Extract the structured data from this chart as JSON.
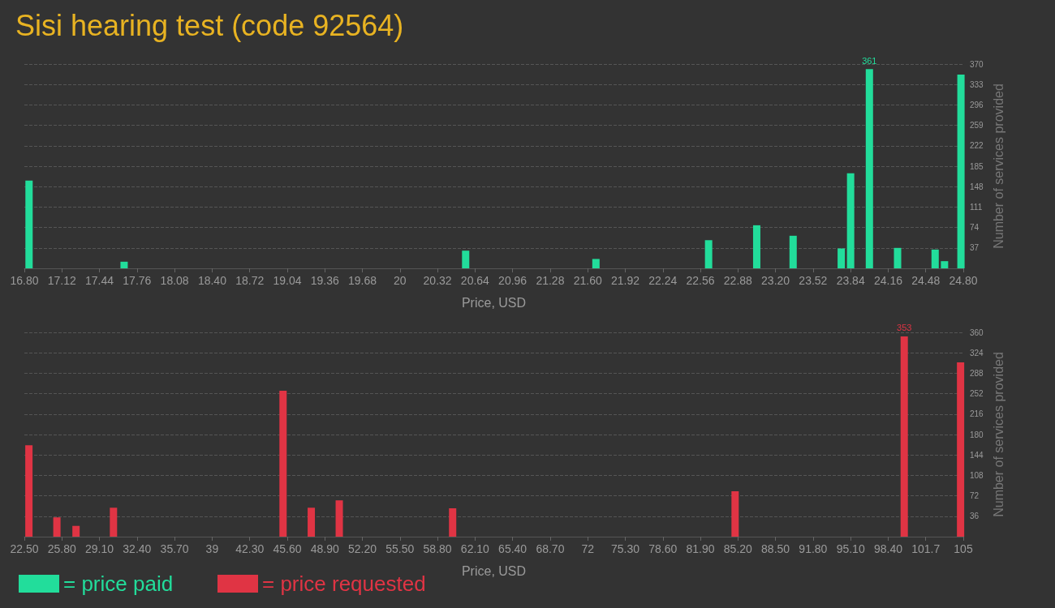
{
  "chart_data": [
    {
      "type": "bar",
      "title": "Sisi hearing test (code 92564)",
      "xlabel": "Price, USD",
      "ylabel": "Number of services provided",
      "x": [
        16.84,
        17.65,
        20.56,
        21.67,
        22.63,
        23.04,
        23.35,
        23.76,
        23.84,
        24.0,
        24.24,
        24.56,
        24.64,
        24.78
      ],
      "series": [
        {
          "name": "= price paid",
          "color": "#22dd9b",
          "values": [
            159,
            12,
            32,
            17,
            51,
            78,
            59,
            36,
            172,
            361,
            37,
            34,
            13,
            351
          ],
          "value_labels": [
            null,
            null,
            null,
            null,
            null,
            null,
            null,
            null,
            null,
            "361",
            null,
            null,
            null,
            null
          ]
        }
      ],
      "xlim": [
        16.8,
        24.8
      ],
      "xticks": [
        {
          "value": 16.8,
          "label": "16.80"
        },
        {
          "value": 17.12,
          "label": "17.12"
        },
        {
          "value": 17.44,
          "label": "17.44"
        },
        {
          "value": 17.76,
          "label": "17.76"
        },
        {
          "value": 18.08,
          "label": "18.08"
        },
        {
          "value": 18.4,
          "label": "18.40"
        },
        {
          "value": 18.72,
          "label": "18.72"
        },
        {
          "value": 19.04,
          "label": "19.04"
        },
        {
          "value": 19.36,
          "label": "19.36"
        },
        {
          "value": 19.68,
          "label": "19.68"
        },
        20,
        {
          "value": 20.32,
          "label": "20.32"
        },
        {
          "value": 20.64,
          "label": "20.64"
        },
        {
          "value": 20.96,
          "label": "20.96"
        },
        {
          "value": 21.28,
          "label": "21.28"
        },
        {
          "value": 21.6,
          "label": "21.60"
        },
        {
          "value": 21.92,
          "label": "21.92"
        },
        {
          "value": 22.24,
          "label": "22.24"
        },
        {
          "value": 22.56,
          "label": "22.56"
        },
        {
          "value": 22.88,
          "label": "22.88"
        },
        {
          "value": 23.2,
          "label": "23.20"
        },
        {
          "value": 23.52,
          "label": "23.52"
        },
        {
          "value": 23.84,
          "label": "23.84"
        },
        {
          "value": 24.16,
          "label": "24.16"
        },
        {
          "value": 24.48,
          "label": "24.48"
        },
        {
          "value": 24.8,
          "label": "24.80"
        }
      ],
      "ylim": [
        0,
        370
      ],
      "yticks": [
        37,
        74,
        111,
        148,
        185,
        222,
        259,
        296,
        333,
        370
      ],
      "grid": "y",
      "legend": "bottom left"
    },
    {
      "type": "bar",
      "xlabel": "Price, USD",
      "ylabel": "Number of services provided",
      "x": [
        22.9,
        25.36,
        27.04,
        30.33,
        45.23,
        47.71,
        50.17,
        60.13,
        84.95,
        99.81,
        104.76
      ],
      "series": [
        {
          "name": "= price requested",
          "color": "#e03444",
          "values": [
            161,
            34,
            19,
            51,
            257,
            51,
            64,
            50,
            80,
            353,
            307
          ],
          "value_labels": [
            null,
            null,
            null,
            null,
            null,
            null,
            null,
            null,
            null,
            "353",
            null
          ]
        }
      ],
      "xlim": [
        22.5,
        105
      ],
      "xticks": [
        {
          "value": 22.5,
          "label": "22.50"
        },
        {
          "value": 25.8,
          "label": "25.80"
        },
        {
          "value": 29.1,
          "label": "29.10"
        },
        {
          "value": 32.4,
          "label": "32.40"
        },
        {
          "value": 35.7,
          "label": "35.70"
        },
        39,
        {
          "value": 42.3,
          "label": "42.30"
        },
        {
          "value": 45.6,
          "label": "45.60"
        },
        {
          "value": 48.9,
          "label": "48.90"
        },
        {
          "value": 52.2,
          "label": "52.20"
        },
        {
          "value": 55.5,
          "label": "55.50"
        },
        {
          "value": 58.8,
          "label": "58.80"
        },
        {
          "value": 62.1,
          "label": "62.10"
        },
        {
          "value": 65.4,
          "label": "65.40"
        },
        {
          "value": 68.7,
          "label": "68.70"
        },
        72,
        {
          "value": 75.3,
          "label": "75.30"
        },
        {
          "value": 78.6,
          "label": "78.60"
        },
        {
          "value": 81.9,
          "label": "81.90"
        },
        {
          "value": 85.2,
          "label": "85.20"
        },
        {
          "value": 88.5,
          "label": "88.50"
        },
        {
          "value": 91.8,
          "label": "91.80"
        },
        {
          "value": 95.1,
          "label": "95.10"
        },
        {
          "value": 98.4,
          "label": "98.40"
        },
        101.7,
        105
      ],
      "ylim": [
        0,
        360
      ],
      "yticks": [
        36,
        72,
        108,
        144,
        180,
        216,
        252,
        288,
        324,
        360
      ],
      "grid": "y",
      "legend": "bottom left"
    }
  ]
}
